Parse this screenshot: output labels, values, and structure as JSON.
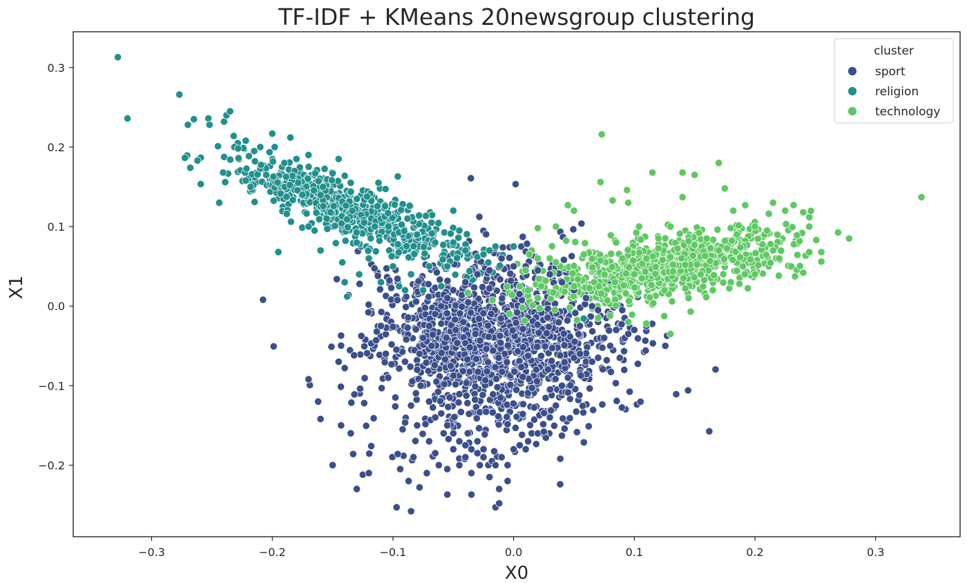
{
  "chart_data": {
    "type": "scatter",
    "title": "TF-IDF + KMeans 20newsgroup clustering",
    "xlabel": "X0",
    "ylabel": "X1",
    "xlim": [
      -0.365,
      0.37
    ],
    "ylim": [
      -0.29,
      0.345
    ],
    "xticks": [
      -0.3,
      -0.2,
      -0.1,
      0.0,
      0.1,
      0.2,
      0.3
    ],
    "xtick_labels": [
      "−0.3",
      "−0.2",
      "−0.1",
      "0.0",
      "0.1",
      "0.2",
      "0.3"
    ],
    "yticks": [
      -0.2,
      -0.1,
      0.0,
      0.1,
      0.2,
      0.3
    ],
    "ytick_labels": [
      "−0.2",
      "−0.1",
      "0.0",
      "0.1",
      "0.2",
      "0.3"
    ],
    "grid": false,
    "legend": {
      "title": "cluster",
      "position": "top-right"
    },
    "series": [
      {
        "name": "sport",
        "color": "#3b4f8c",
        "points": [
          [
            -0.15,
            -0.2
          ],
          [
            -0.13,
            -0.23
          ],
          [
            -0.097,
            -0.253
          ],
          [
            -0.085,
            -0.258
          ],
          [
            -0.055,
            -0.237
          ],
          [
            -0.035,
            -0.237
          ],
          [
            -0.015,
            -0.253
          ],
          [
            -0.012,
            -0.248
          ],
          [
            -0.005,
            -0.22
          ],
          [
            -0.17,
            -0.092
          ],
          [
            -0.162,
            -0.12
          ],
          [
            -0.16,
            -0.142
          ],
          [
            -0.145,
            -0.07
          ],
          [
            -0.143,
            -0.037
          ],
          [
            -0.14,
            -0.078
          ],
          [
            -0.143,
            -0.15
          ],
          [
            -0.135,
            -0.16
          ],
          [
            -0.133,
            -0.186
          ],
          [
            -0.125,
            -0.212
          ],
          [
            -0.12,
            -0.21
          ],
          [
            -0.118,
            -0.176
          ],
          [
            -0.116,
            -0.141
          ],
          [
            -0.114,
            -0.043
          ],
          [
            -0.11,
            -0.025
          ],
          [
            -0.106,
            -0.06
          ],
          [
            -0.104,
            -0.09
          ],
          [
            -0.1,
            -0.026
          ],
          [
            -0.098,
            -0.115
          ],
          [
            -0.096,
            -0.186
          ],
          [
            -0.094,
            -0.205
          ],
          [
            -0.092,
            -0.155
          ],
          [
            -0.09,
            -0.07
          ],
          [
            -0.089,
            -0.042
          ],
          [
            -0.087,
            -0.22
          ],
          [
            -0.085,
            -0.125
          ],
          [
            -0.083,
            -0.19
          ],
          [
            -0.08,
            -0.15
          ],
          [
            -0.078,
            -0.228
          ],
          [
            -0.075,
            -0.1
          ],
          [
            -0.072,
            -0.21
          ],
          [
            -0.07,
            -0.17
          ],
          [
            -0.068,
            -0.05
          ],
          [
            -0.065,
            -0.185
          ],
          [
            -0.062,
            -0.2
          ],
          [
            -0.06,
            -0.022
          ],
          [
            -0.058,
            -0.16
          ],
          [
            -0.055,
            -0.205
          ],
          [
            -0.053,
            -0.115
          ],
          [
            -0.05,
            -0.18
          ],
          [
            -0.048,
            -0.03
          ],
          [
            -0.045,
            -0.2
          ],
          [
            -0.04,
            -0.19
          ],
          [
            -0.038,
            -0.16
          ],
          [
            -0.035,
            -0.21
          ],
          [
            -0.03,
            -0.17
          ],
          [
            -0.028,
            -0.2
          ],
          [
            -0.025,
            -0.18
          ],
          [
            -0.02,
            -0.215
          ],
          [
            -0.018,
            -0.195
          ],
          [
            -0.015,
            -0.2
          ],
          [
            -0.012,
            -0.23
          ],
          [
            -0.01,
            -0.19
          ],
          [
            -0.005,
            -0.2
          ],
          [
            0.0,
            -0.18
          ],
          [
            0.005,
            -0.175
          ],
          [
            0.01,
            -0.18
          ],
          [
            0.012,
            -0.17
          ],
          [
            0.015,
            -0.16
          ],
          [
            0.02,
            -0.16
          ],
          [
            0.025,
            -0.158
          ],
          [
            0.03,
            -0.14
          ],
          [
            0.035,
            -0.125
          ],
          [
            0.04,
            -0.1
          ],
          [
            0.045,
            -0.09
          ],
          [
            0.05,
            -0.065
          ],
          [
            0.055,
            -0.06
          ],
          [
            0.06,
            -0.07
          ],
          [
            0.065,
            -0.07
          ],
          [
            0.07,
            -0.065
          ],
          [
            0.075,
            -0.04
          ],
          [
            0.08,
            -0.05
          ],
          [
            0.085,
            -0.03
          ],
          [
            0.088,
            -0.065
          ],
          [
            0.092,
            -0.015
          ],
          [
            0.095,
            -0.035
          ],
          [
            0.1,
            -0.03
          ],
          [
            0.11,
            -0.025
          ],
          [
            0.07,
            -0.02
          ],
          [
            0.08,
            -0.01
          ],
          [
            0.09,
            -0.005
          ],
          [
            0.0,
            0.05
          ],
          [
            -0.01,
            0.06
          ],
          [
            0.01,
            0.05
          ],
          [
            -0.02,
            0.045
          ],
          [
            0.02,
            0.045
          ],
          [
            -0.03,
            0.04
          ],
          [
            0.03,
            0.04
          ],
          [
            -0.04,
            0.03
          ],
          [
            0.04,
            0.03
          ],
          [
            -0.05,
            0.02
          ],
          [
            0.05,
            0.02
          ],
          [
            -0.055,
            0.01
          ],
          [
            0.06,
            0.01
          ],
          [
            -0.06,
            0.0
          ],
          [
            0.065,
            0.0
          ],
          [
            -0.065,
            -0.01
          ],
          [
            0.07,
            -0.005
          ],
          [
            -0.07,
            -0.025
          ],
          [
            0.055,
            -0.025
          ],
          [
            -0.075,
            -0.04
          ],
          [
            -0.078,
            -0.06
          ],
          [
            -0.08,
            -0.08
          ],
          [
            -0.077,
            -0.1
          ],
          [
            -0.07,
            -0.12
          ],
          [
            -0.065,
            -0.14
          ],
          [
            -0.06,
            -0.135
          ],
          [
            -0.055,
            -0.15
          ],
          [
            -0.05,
            -0.16
          ],
          [
            -0.045,
            -0.17
          ],
          [
            -0.04,
            -0.175
          ],
          [
            -0.035,
            -0.18
          ],
          [
            -0.03,
            -0.185
          ],
          [
            -0.025,
            -0.19
          ]
        ]
      },
      {
        "name": "religion",
        "color": "#21908d",
        "points": [
          [
            -0.328,
            0.313
          ],
          [
            -0.32,
            0.236
          ],
          [
            -0.277,
            0.266
          ],
          [
            -0.27,
            0.228
          ],
          [
            -0.268,
            0.174
          ],
          [
            -0.265,
            0.235
          ],
          [
            -0.262,
            0.183
          ],
          [
            -0.253,
            0.236
          ],
          [
            -0.252,
            0.228
          ],
          [
            -0.244,
            0.13
          ],
          [
            -0.24,
            0.232
          ],
          [
            -0.238,
            0.24
          ],
          [
            -0.235,
            0.245
          ],
          [
            -0.232,
            0.214
          ],
          [
            -0.228,
            0.186
          ],
          [
            -0.222,
            0.208
          ],
          [
            -0.222,
            0.158
          ],
          [
            -0.218,
            0.15
          ],
          [
            -0.215,
            0.195
          ],
          [
            -0.21,
            0.2
          ],
          [
            -0.205,
            0.165
          ],
          [
            -0.2,
            0.217
          ],
          [
            -0.198,
            0.2
          ],
          [
            -0.195,
            0.068
          ],
          [
            -0.19,
            0.18
          ],
          [
            -0.188,
            0.116
          ],
          [
            -0.185,
            0.212
          ],
          [
            -0.18,
            0.185
          ],
          [
            -0.175,
            0.14
          ],
          [
            -0.17,
            0.1
          ],
          [
            -0.17,
            0.19
          ],
          [
            -0.165,
            0.095
          ],
          [
            -0.16,
            0.07
          ],
          [
            -0.158,
            0.15
          ],
          [
            -0.155,
            0.11
          ],
          [
            -0.15,
            0.167
          ],
          [
            -0.145,
            0.185
          ],
          [
            -0.142,
            0.055
          ],
          [
            -0.14,
            0.03
          ],
          [
            -0.138,
            0.012
          ],
          [
            -0.135,
            0.155
          ],
          [
            -0.13,
            0.08
          ],
          [
            -0.128,
            0.04
          ],
          [
            -0.12,
            0.06
          ],
          [
            -0.115,
            0.1
          ],
          [
            -0.112,
            0.155
          ],
          [
            -0.11,
            0.03
          ],
          [
            -0.1,
            0.05
          ],
          [
            -0.096,
            0.163
          ],
          [
            -0.095,
            0.025
          ],
          [
            -0.09,
            0.02
          ],
          [
            -0.088,
            0.11
          ],
          [
            -0.085,
            0.04
          ],
          [
            -0.08,
            0.09
          ],
          [
            -0.075,
            0.02
          ],
          [
            -0.07,
            0.05
          ],
          [
            -0.068,
            0.105
          ],
          [
            -0.065,
            0.08
          ],
          [
            -0.06,
            0.025
          ],
          [
            -0.055,
            0.05
          ],
          [
            -0.05,
            0.12
          ],
          [
            -0.045,
            0.095
          ],
          [
            -0.04,
            0.07
          ],
          [
            -0.03,
            0.062
          ],
          [
            -0.025,
            0.065
          ],
          [
            -0.02,
            0.07
          ],
          [
            -0.015,
            0.075
          ],
          [
            0.0,
            0.075
          ]
        ]
      },
      {
        "name": "technology",
        "color": "#5ec962",
        "points": [
          [
            0.073,
            0.216
          ],
          [
            0.072,
            0.156
          ],
          [
            0.082,
            0.133
          ],
          [
            0.094,
            0.146
          ],
          [
            0.095,
            0.13
          ],
          [
            0.104,
            0.1
          ],
          [
            0.115,
            0.168
          ],
          [
            0.14,
            0.168
          ],
          [
            0.15,
            0.165
          ],
          [
            0.14,
            0.137
          ],
          [
            0.17,
            0.18
          ],
          [
            0.175,
            0.148
          ],
          [
            0.182,
            0.12
          ],
          [
            0.192,
            0.127
          ],
          [
            0.215,
            0.13
          ],
          [
            0.225,
            0.12
          ],
          [
            0.232,
            0.127
          ],
          [
            0.24,
            0.118
          ],
          [
            0.245,
            0.1
          ],
          [
            0.255,
            0.068
          ],
          [
            0.255,
            0.056
          ],
          [
            0.24,
            0.042
          ],
          [
            0.278,
            0.085
          ],
          [
            0.338,
            0.137
          ],
          [
            0.045,
            0.127
          ],
          [
            0.05,
            0.12
          ],
          [
            0.035,
            0.1
          ],
          [
            0.02,
            0.098
          ],
          [
            0.015,
            0.07
          ],
          [
            0.013,
            0.065
          ],
          [
            0.02,
            0.06
          ],
          [
            0.03,
            0.06
          ],
          [
            0.01,
            0.045
          ],
          [
            0.012,
            0.02
          ],
          [
            0.02,
            0.01
          ],
          [
            0.05,
            0.025
          ],
          [
            0.07,
            -0.015
          ],
          [
            0.08,
            -0.012
          ],
          [
            0.095,
            -0.02
          ],
          [
            0.11,
            -0.022
          ],
          [
            0.13,
            -0.035
          ],
          [
            0.145,
            0.01
          ],
          [
            0.165,
            0.02
          ],
          [
            0.18,
            0.03
          ],
          [
            0.19,
            0.05
          ],
          [
            0.2,
            0.04
          ],
          [
            0.215,
            0.07
          ],
          [
            0.22,
            0.06
          ],
          [
            0.23,
            0.05
          ],
          [
            0.2,
            0.1
          ],
          [
            0.21,
            0.095
          ],
          [
            0.185,
            0.09
          ],
          [
            0.16,
            0.085
          ],
          [
            0.17,
            0.07
          ],
          [
            0.155,
            0.04
          ],
          [
            0.125,
            0.02
          ],
          [
            0.13,
            0.1
          ],
          [
            0.12,
            0.085
          ],
          [
            0.11,
            0.06
          ],
          [
            0.1,
            0.04
          ],
          [
            0.09,
            0.06
          ],
          [
            0.085,
            0.08
          ]
        ]
      }
    ],
    "clusters": [
      {
        "series": "sport",
        "center": [
          -0.015,
          -0.045
        ],
        "spread": [
          0.05,
          0.055
        ],
        "angle_deg": 20,
        "count": 1400
      },
      {
        "series": "religion",
        "center": [
          -0.135,
          0.12
        ],
        "spread": [
          0.055,
          0.014
        ],
        "angle_deg": -32,
        "count": 650
      },
      {
        "series": "technology",
        "center": [
          0.125,
          0.05
        ],
        "spread": [
          0.055,
          0.018
        ],
        "angle_deg": 17,
        "count": 750
      }
    ]
  }
}
